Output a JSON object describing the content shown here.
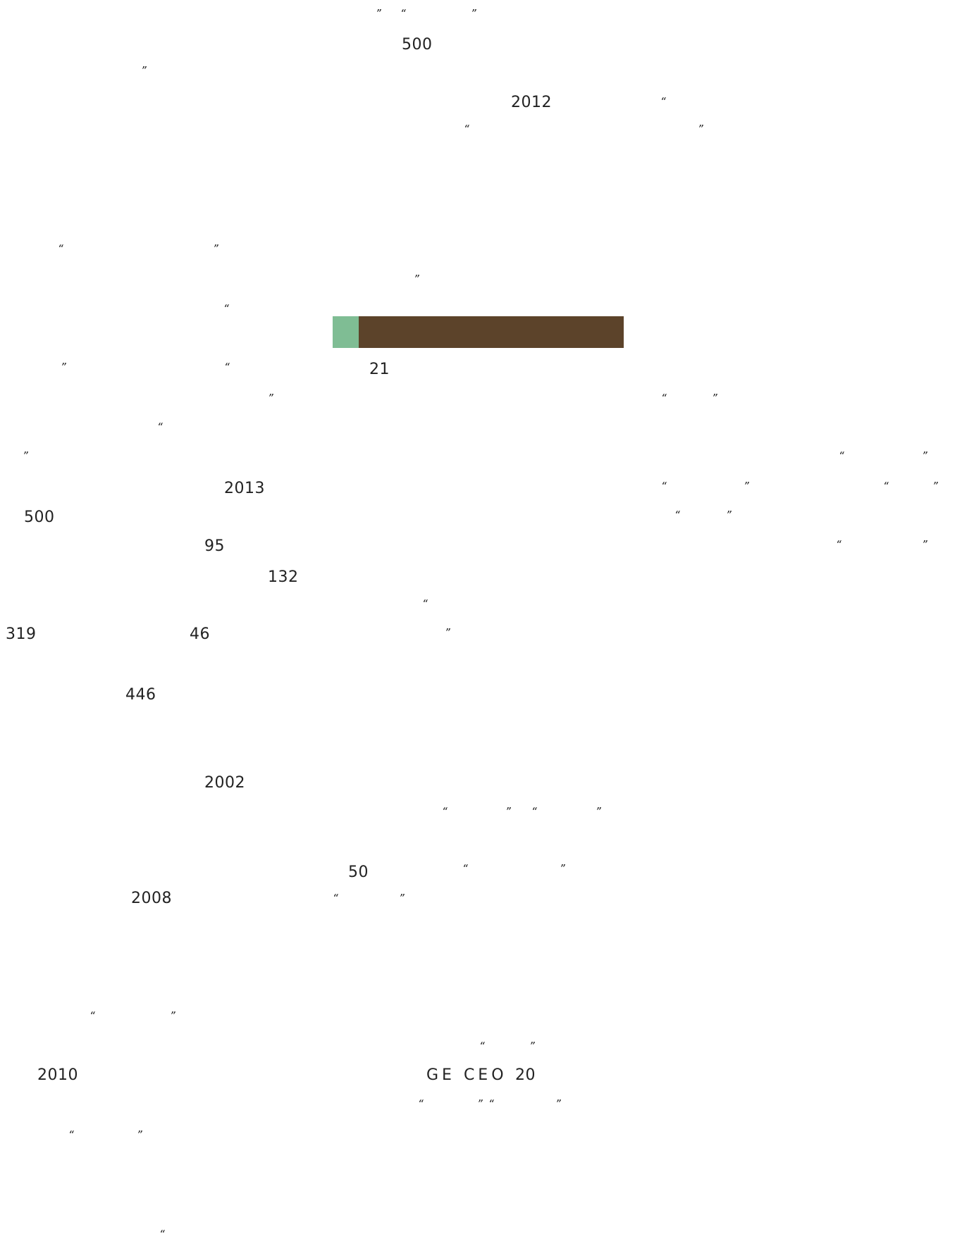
{
  "numbers": {
    "n500_top": "500",
    "n2012": "2012",
    "n21": "21",
    "n2013": "2013",
    "n500_left": "500",
    "n95": "95",
    "n132": "132",
    "n319": "319",
    "n46": "46",
    "n446": "446",
    "n2002": "2002",
    "n50": "50",
    "n2008": "2008",
    "n2010": "2010",
    "ge_ceo": "GE CEO",
    "n20": "20"
  },
  "quote_marks": {
    "open": "“",
    "close": "”"
  },
  "colors": {
    "bar_green": "#7fbd94",
    "bar_brown": "#5c432a"
  }
}
